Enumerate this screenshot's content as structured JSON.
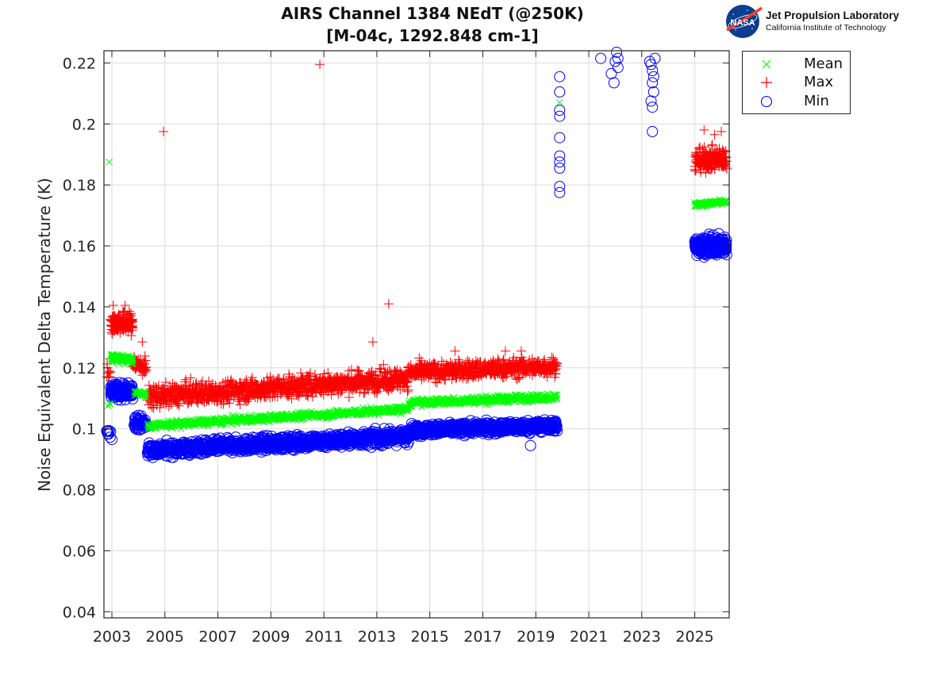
{
  "header": {
    "title_line1": "AIRS Channel 1384 NEdT (@250K)",
    "title_line2": "[M-04c, 1292.848 cm-1]",
    "logo_text_1": "Jet Propulsion Laboratory",
    "logo_text_2": "California Institute of Technology",
    "logo_badge": "NASA"
  },
  "chart_data": {
    "type": "scatter",
    "title": "AIRS Channel 1384 NEdT (@250K) [M-04c, 1292.848 cm-1]",
    "xlabel": "",
    "ylabel": "Noise Equivalent Delta Temperature (K)",
    "xlim": [
      2002.7,
      2026.3
    ],
    "ylim": [
      0.038,
      0.224
    ],
    "grid": true,
    "xticks": [
      2003,
      2005,
      2007,
      2009,
      2011,
      2013,
      2015,
      2017,
      2019,
      2021,
      2023,
      2025
    ],
    "xtick_labels": [
      "2003",
      "2005",
      "2007",
      "2009",
      "2011",
      "2013",
      "2015",
      "2017",
      "2019",
      "2021",
      "2023",
      "2025"
    ],
    "yticks": [
      0.04,
      0.06,
      0.08,
      0.1,
      0.12,
      0.14,
      0.16,
      0.18,
      0.2,
      0.22
    ],
    "ytick_labels": [
      "0.04",
      "0.06",
      "0.08",
      "0.1",
      "0.12",
      "0.14",
      "0.16",
      "0.18",
      "0.2",
      "0.22"
    ],
    "legend_position": "outside-top-right",
    "series": [
      {
        "name": "Mean",
        "marker": "x",
        "color": "#00ff00",
        "bands": [
          {
            "x": [
              2002.85,
              2002.95
            ],
            "y": [
              0.108,
              0.108
            ],
            "spread": 0.0005,
            "n": 3
          },
          {
            "x": [
              2002.95,
              2003.8
            ],
            "y": [
              0.1235,
              0.1225
            ],
            "spread": 0.0015,
            "n": 90
          },
          {
            "x": [
              2003.85,
              2004.3
            ],
            "y": [
              0.112,
              0.111
            ],
            "spread": 0.0008,
            "n": 30
          },
          {
            "x": [
              2004.35,
              2014.2
            ],
            "y": [
              0.101,
              0.1065
            ],
            "spread": 0.0012,
            "n": 700
          },
          {
            "x": [
              2014.2,
              2019.8
            ],
            "y": [
              0.1085,
              0.1105
            ],
            "spread": 0.0012,
            "n": 420
          },
          {
            "x": [
              2025.0,
              2026.2
            ],
            "y": [
              0.1735,
              0.1745
            ],
            "spread": 0.0007,
            "n": 120
          }
        ],
        "outliers": [
          [
            2002.9,
            0.1875
          ],
          [
            2019.9,
            0.207
          ]
        ]
      },
      {
        "name": "Max",
        "marker": "+",
        "color": "#ff0000",
        "bands": [
          {
            "x": [
              2002.8,
              2002.95
            ],
            "y": [
              0.118,
              0.12
            ],
            "spread": 0.003,
            "n": 10
          },
          {
            "x": [
              2002.95,
              2003.8
            ],
            "y": [
              0.135,
              0.1345
            ],
            "spread": 0.0035,
            "n": 150
          },
          {
            "x": [
              2003.8,
              2004.3
            ],
            "y": [
              0.1215,
              0.12
            ],
            "spread": 0.003,
            "n": 60
          },
          {
            "x": [
              2004.35,
              2014.2
            ],
            "y": [
              0.1105,
              0.1165
            ],
            "spread": 0.0035,
            "n": 1100
          },
          {
            "x": [
              2014.2,
              2019.8
            ],
            "y": [
              0.1185,
              0.1205
            ],
            "spread": 0.003,
            "n": 600
          },
          {
            "x": [
              2025.0,
              2026.2
            ],
            "y": [
              0.188,
              0.1885
            ],
            "spread": 0.0035,
            "n": 200
          }
        ],
        "outliers": [
          [
            2004.95,
            0.1975
          ],
          [
            2010.85,
            0.2195
          ],
          [
            2013.45,
            0.141
          ],
          [
            2012.85,
            0.1285
          ],
          [
            2003.05,
            0.1405
          ],
          [
            2003.5,
            0.1405
          ],
          [
            2004.15,
            0.1285
          ],
          [
            2015.95,
            0.1255
          ],
          [
            2018.45,
            0.1255
          ],
          [
            2017.85,
            0.1255
          ],
          [
            2025.35,
            0.198
          ],
          [
            2025.75,
            0.1965
          ],
          [
            2026.0,
            0.1975
          ]
        ]
      },
      {
        "name": "Min",
        "marker": "o",
        "color": "#0000ff",
        "bands": [
          {
            "x": [
              2002.8,
              2002.95
            ],
            "y": [
              0.0985,
              0.0985
            ],
            "spread": 0.0015,
            "n": 8
          },
          {
            "x": [
              2002.95,
              2003.8
            ],
            "y": [
              0.1125,
              0.112
            ],
            "spread": 0.0025,
            "n": 140
          },
          {
            "x": [
              2003.85,
              2004.3
            ],
            "y": [
              0.1025,
              0.1015
            ],
            "spread": 0.0022,
            "n": 60
          },
          {
            "x": [
              2004.35,
              2014.2
            ],
            "y": [
              0.093,
              0.0975
            ],
            "spread": 0.0022,
            "n": 1100
          },
          {
            "x": [
              2014.2,
              2019.8
            ],
            "y": [
              0.0995,
              0.101
            ],
            "spread": 0.0018,
            "n": 650
          },
          {
            "x": [
              2025.0,
              2026.2
            ],
            "y": [
              0.16,
              0.16
            ],
            "spread": 0.0028,
            "n": 260
          }
        ],
        "outliers": [
          [
            2019.9,
            0.2155
          ],
          [
            2019.9,
            0.2105
          ],
          [
            2019.9,
            0.2045
          ],
          [
            2019.9,
            0.2025
          ],
          [
            2019.9,
            0.1955
          ],
          [
            2019.9,
            0.1895
          ],
          [
            2019.9,
            0.1875
          ],
          [
            2019.9,
            0.1855
          ],
          [
            2019.9,
            0.1795
          ],
          [
            2019.9,
            0.1775
          ],
          [
            2021.45,
            0.2215
          ],
          [
            2021.85,
            0.2165
          ],
          [
            2021.95,
            0.2135
          ],
          [
            2022.0,
            0.2205
          ],
          [
            2022.05,
            0.2235
          ],
          [
            2022.1,
            0.2185
          ],
          [
            2022.1,
            0.2215
          ],
          [
            2023.3,
            0.2205
          ],
          [
            2023.35,
            0.2195
          ],
          [
            2023.4,
            0.2175
          ],
          [
            2023.45,
            0.2155
          ],
          [
            2023.4,
            0.2135
          ],
          [
            2023.45,
            0.2105
          ],
          [
            2023.35,
            0.2075
          ],
          [
            2023.4,
            0.2055
          ],
          [
            2023.4,
            0.1975
          ],
          [
            2023.5,
            0.2215
          ],
          [
            2018.8,
            0.0945
          ],
          [
            2003.0,
            0.0965
          ]
        ]
      }
    ]
  }
}
